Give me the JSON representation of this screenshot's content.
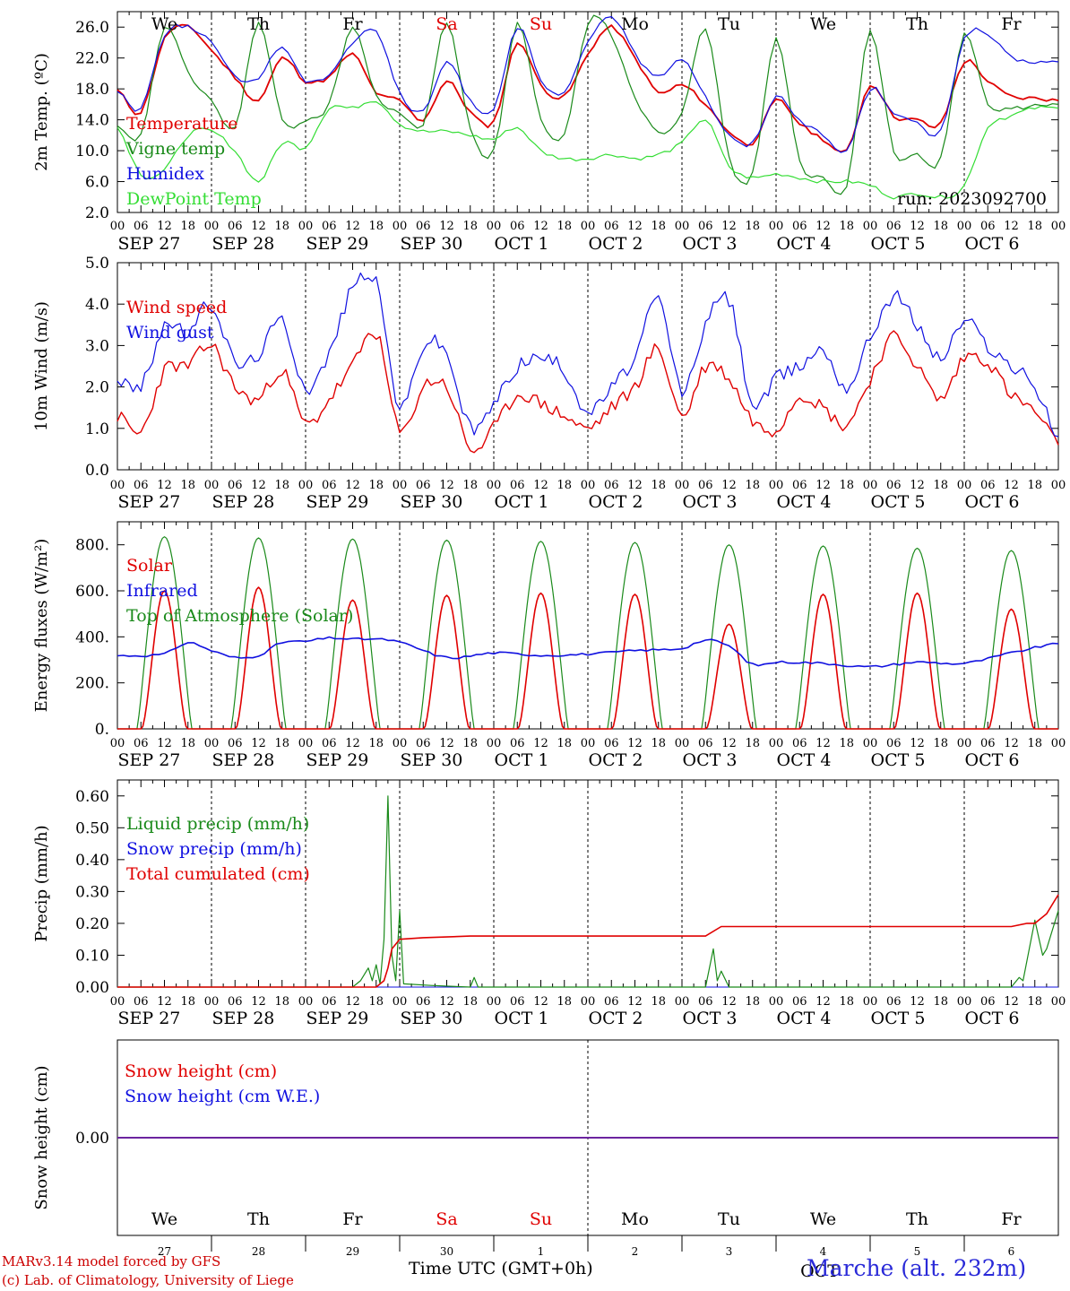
{
  "chart_data": [
    {
      "type": "line",
      "ylabel": "2m Temp. (ºC)",
      "ylim": [
        2,
        28
      ],
      "yticks": [
        "2.0",
        "6.0",
        "10.0",
        "14.0",
        "18.0",
        "22.0",
        "26.0"
      ],
      "run_label": "run: 2023092700",
      "x_hours": [
        0,
        6,
        12,
        18,
        24,
        30,
        36,
        42,
        48,
        54,
        60,
        66,
        72,
        78,
        84,
        90,
        96,
        102,
        108,
        114,
        120,
        126,
        132,
        138,
        144,
        150,
        156,
        162,
        168,
        174,
        180,
        186,
        192,
        198,
        204,
        210,
        216,
        222,
        228,
        234,
        240
      ],
      "series": [
        {
          "name": "Temperature",
          "color": "#e00000",
          "width": 1.8,
          "values": [
            17.8,
            15.0,
            24.5,
            26.0,
            23.0,
            19.5,
            16.5,
            22.0,
            19.0,
            19.5,
            22.5,
            17.5,
            16.5,
            14.0,
            19.0,
            15.0,
            13.8,
            24.0,
            18.5,
            17.0,
            22.5,
            26.0,
            22.0,
            17.5,
            18.5,
            16.0,
            12.5,
            11.0,
            16.5,
            13.5,
            11.5,
            10.0,
            18.5,
            14.5,
            14.0,
            13.5,
            21.5,
            19.0,
            17.0,
            16.8,
            16.5
          ]
        },
        {
          "name": "Vigne temp",
          "color": "#1a8a1a",
          "width": 1.2,
          "values": [
            13.0,
            12.0,
            26.0,
            20.0,
            16.5,
            13.0,
            26.5,
            14.0,
            14.0,
            16.0,
            26.0,
            17.0,
            15.0,
            13.5,
            26.5,
            13.0,
            10.0,
            26.5,
            14.0,
            12.0,
            26.5,
            25.0,
            17.0,
            12.5,
            15.0,
            26.0,
            9.0,
            7.0,
            24.5,
            8.5,
            6.5,
            5.5,
            25.5,
            10.0,
            9.5,
            9.0,
            25.0,
            16.0,
            15.5,
            15.8,
            16.0
          ]
        },
        {
          "name": "Humidex",
          "color": "#1010e0",
          "width": 1.2,
          "values": [
            17.8,
            15.5,
            25.0,
            26.0,
            24.0,
            19.5,
            19.5,
            23.5,
            19.0,
            20.0,
            24.0,
            25.5,
            17.5,
            15.0,
            21.5,
            16.5,
            15.5,
            26.0,
            19.0,
            17.5,
            24.0,
            27.5,
            22.5,
            19.5,
            22.0,
            17.0,
            12.0,
            11.0,
            17.0,
            14.0,
            12.0,
            10.0,
            18.0,
            15.0,
            13.5,
            12.5,
            24.5,
            25.0,
            22.0,
            21.5,
            21.5
          ]
        },
        {
          "name": "DewPoint Temp",
          "color": "#33dd33",
          "width": 1.2,
          "values": [
            13.0,
            7.0,
            7.5,
            12.0,
            12.5,
            10.0,
            6.0,
            11.0,
            10.5,
            15.5,
            15.5,
            16.5,
            13.5,
            12.5,
            12.5,
            12.0,
            11.5,
            13.0,
            10.0,
            9.0,
            9.0,
            9.5,
            9.0,
            9.5,
            11.0,
            14.0,
            8.0,
            6.5,
            7.0,
            6.5,
            6.0,
            6.0,
            5.5,
            4.0,
            4.5,
            4.0,
            5.5,
            13.0,
            14.5,
            15.5,
            15.5
          ]
        }
      ]
    },
    {
      "type": "line",
      "ylabel": "10m Wind (m/s)",
      "ylim": [
        0,
        5
      ],
      "yticks": [
        "0.0",
        "1.0",
        "2.0",
        "3.0",
        "4.0",
        "5.0"
      ],
      "x_hours": [
        0,
        6,
        12,
        18,
        24,
        30,
        36,
        42,
        48,
        54,
        60,
        66,
        72,
        78,
        84,
        90,
        96,
        102,
        108,
        114,
        120,
        126,
        132,
        138,
        144,
        150,
        156,
        162,
        168,
        174,
        180,
        186,
        192,
        198,
        204,
        210,
        216,
        222,
        228,
        234,
        240
      ],
      "series": [
        {
          "name": "Wind speed",
          "color": "#e00000",
          "width": 1.4,
          "values": [
            1.3,
            0.9,
            2.4,
            2.5,
            3.0,
            2.0,
            1.7,
            2.4,
            1.1,
            1.7,
            2.5,
            3.3,
            0.9,
            2.0,
            2.0,
            0.5,
            1.0,
            1.8,
            1.6,
            1.3,
            1.0,
            1.5,
            2.0,
            2.9,
            1.3,
            2.5,
            2.2,
            1.2,
            1.0,
            1.8,
            1.5,
            1.1,
            2.2,
            3.2,
            2.5,
            1.7,
            2.7,
            2.6,
            1.8,
            1.4,
            0.6
          ]
        },
        {
          "name": "Wind gust",
          "color": "#1010e0",
          "width": 1.2,
          "values": [
            2.2,
            2.0,
            3.5,
            3.3,
            4.0,
            2.6,
            2.8,
            3.6,
            2.0,
            2.8,
            4.4,
            4.5,
            1.5,
            3.0,
            2.8,
            1.0,
            1.6,
            2.5,
            2.7,
            2.4,
            1.4,
            2.0,
            2.7,
            4.1,
            1.9,
            3.5,
            4.1,
            1.6,
            2.2,
            2.5,
            2.9,
            2.0,
            3.2,
            4.2,
            3.5,
            2.7,
            3.6,
            3.0,
            2.5,
            2.0,
            0.8
          ]
        }
      ]
    },
    {
      "type": "line",
      "ylabel": "Energy fluxes (W/m²)",
      "ylim": [
        0,
        900
      ],
      "yticks": [
        "0.",
        "200.",
        "400.",
        "600.",
        "800."
      ],
      "days": [
        "SEP 27",
        "SEP 28",
        "SEP 29",
        "SEP 30",
        "OCT 1",
        "OCT 2",
        "OCT 3",
        "OCT 4",
        "OCT 5",
        "OCT 6"
      ],
      "series": [
        {
          "name": "Solar",
          "color": "#e00000",
          "width": 1.6,
          "daily_peak": [
            600,
            615,
            560,
            580,
            590,
            585,
            455,
            585,
            590,
            520
          ]
        },
        {
          "name": "Infrared",
          "color": "#1010e0",
          "width": 1.6,
          "x_hours": [
            0,
            12,
            18,
            24,
            30,
            36,
            42,
            48,
            54,
            60,
            66,
            72,
            84,
            96,
            108,
            120,
            132,
            144,
            150,
            156,
            162,
            168,
            180,
            192,
            204,
            216,
            228,
            240
          ],
          "values": [
            318,
            325,
            375,
            340,
            310,
            320,
            375,
            380,
            395,
            390,
            390,
            375,
            310,
            330,
            320,
            325,
            340,
            350,
            385,
            360,
            280,
            290,
            285,
            270,
            290,
            285,
            330,
            370
          ]
        },
        {
          "name": "Top of Atmosphere (Solar)",
          "color": "#1a8a1a",
          "width": 1.2,
          "daily_peak": [
            835,
            830,
            825,
            820,
            815,
            810,
            800,
            795,
            785,
            775
          ]
        }
      ]
    },
    {
      "type": "line",
      "ylabel": "Precip (mm/h)",
      "ylim": [
        0,
        0.65
      ],
      "yticks": [
        "0.00",
        "0.10",
        "0.20",
        "0.30",
        "0.40",
        "0.50",
        "0.60"
      ],
      "series": [
        {
          "name": "Liquid precip (mm/h)",
          "color": "#1a8a1a",
          "width": 1.2,
          "points": [
            [
              0,
              0
            ],
            [
              60,
              0
            ],
            [
              62,
              0.02
            ],
            [
              64,
              0.06
            ],
            [
              65,
              0.02
            ],
            [
              66,
              0.07
            ],
            [
              67,
              0.01
            ],
            [
              68,
              0.15
            ],
            [
              69,
              0.6
            ],
            [
              70,
              0.1
            ],
            [
              71,
              0.02
            ],
            [
              72,
              0.24
            ],
            [
              73,
              0.01
            ],
            [
              80,
              0.005
            ],
            [
              90,
              0.0
            ],
            [
              91,
              0.03
            ],
            [
              92,
              0.0
            ],
            [
              150,
              0.0
            ],
            [
              152,
              0.12
            ],
            [
              153,
              0.02
            ],
            [
              154,
              0.05
            ],
            [
              156,
              0.0
            ],
            [
              228,
              0.0
            ],
            [
              230,
              0.03
            ],
            [
              231,
              0.02
            ],
            [
              234,
              0.21
            ],
            [
              236,
              0.1
            ],
            [
              237,
              0.12
            ],
            [
              240,
              0.24
            ]
          ]
        },
        {
          "name": "Snow precip (mm/h)",
          "color": "#1010e0",
          "width": 1.0,
          "points": [
            [
              0,
              0
            ],
            [
              240,
              0
            ]
          ]
        },
        {
          "name": "Total cumulated (cm)",
          "color": "#e00000",
          "width": 1.6,
          "points": [
            [
              0,
              0
            ],
            [
              66,
              0
            ],
            [
              68,
              0.02
            ],
            [
              69,
              0.06
            ],
            [
              70,
              0.12
            ],
            [
              72,
              0.15
            ],
            [
              78,
              0.155
            ],
            [
              90,
              0.16
            ],
            [
              126,
              0.16
            ],
            [
              150,
              0.16
            ],
            [
              154,
              0.19
            ],
            [
              228,
              0.19
            ],
            [
              232,
              0.2
            ],
            [
              234,
              0.2
            ],
            [
              237,
              0.23
            ],
            [
              239,
              0.27
            ],
            [
              240,
              0.29
            ]
          ]
        }
      ]
    },
    {
      "type": "line",
      "ylabel": "Snow height (cm)",
      "yticks": [
        "0.00"
      ],
      "series": [
        {
          "name": "Snow height (cm)",
          "color": "#e00000",
          "values_constant": 0.0
        },
        {
          "name": "Snow height (cm W.E.)",
          "color": "#1010e0",
          "values_constant": 0.0
        }
      ],
      "day_names": [
        "We",
        "Th",
        "Fr",
        "Sa",
        "Su",
        "Mo",
        "Tu",
        "We",
        "Th",
        "Fr"
      ],
      "day_numbers": [
        "27",
        "28",
        "29",
        "30",
        "1",
        "2",
        "3",
        "4",
        "5",
        "6"
      ],
      "month_label": "OCT"
    }
  ],
  "x_axis": {
    "hour_labels": [
      "00",
      "06",
      "12",
      "18"
    ],
    "end_label": "00",
    "days": [
      "SEP 27",
      "SEP 28",
      "SEP 29",
      "SEP 30",
      "OCT 1",
      "OCT 2",
      "OCT 3",
      "OCT 4",
      "OCT 5",
      "OCT 6"
    ],
    "day_names": [
      "We",
      "Th",
      "Fr",
      "Sa",
      "Su",
      "Mo",
      "Tu",
      "We",
      "Th",
      "Fr"
    ],
    "weekend_flags": [
      false,
      false,
      false,
      true,
      true,
      false,
      false,
      false,
      false,
      false
    ]
  },
  "colors": {
    "weekend": "#e00000",
    "weekday": "#000000"
  },
  "footer": {
    "credit_line1": "MARv3.14 model forced by GFS",
    "credit_line2": "(c) Lab. of Climatology, University of Liege",
    "x_title": "Time UTC (GMT+0h)",
    "station": "Marche (alt. 232m)"
  }
}
